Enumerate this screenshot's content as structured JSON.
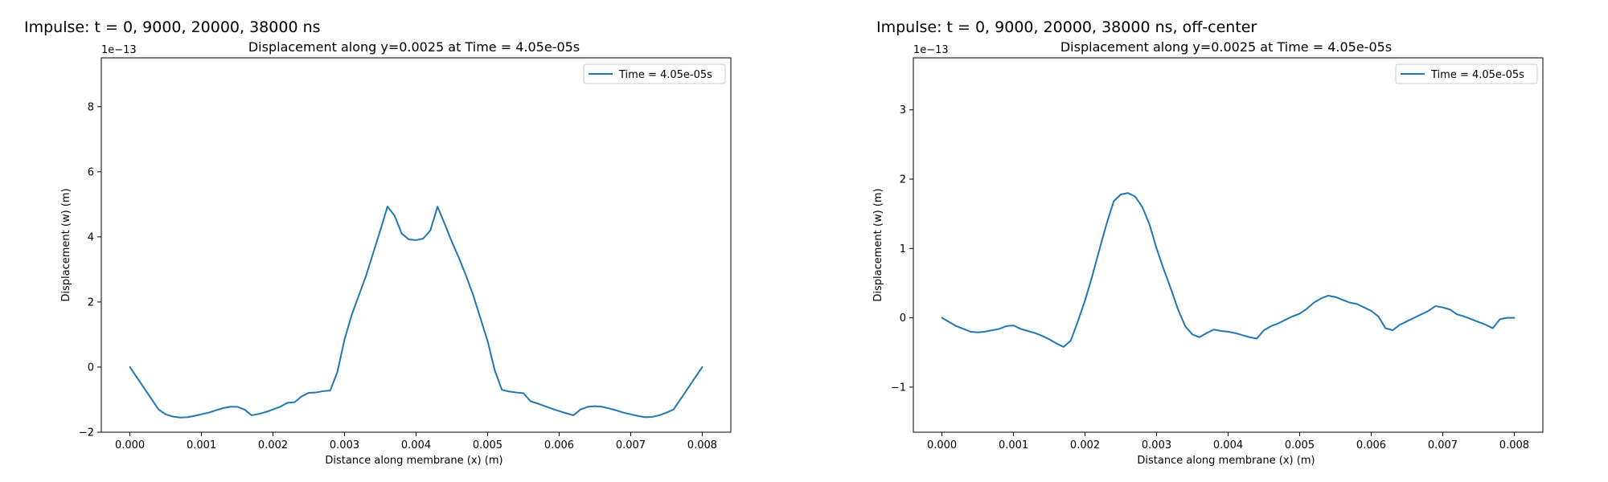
{
  "figure": {
    "colors": {
      "series": "#1f77b4",
      "axes": "#000000",
      "legend_border": "#cccccc",
      "background": "#ffffff"
    }
  },
  "chart_data": [
    {
      "type": "line",
      "suptitle": "Impulse: t = 0, 9000, 20000, 38000 ns",
      "title": "Displacement along y=0.0025 at Time = 4.05e-05s",
      "xlabel": "Distance along membrane (x) (m)",
      "ylabel": "Displacement (w) (m)",
      "y_offset_text": "1e−13",
      "xlim": [
        -0.0004,
        0.0084
      ],
      "ylim": [
        -2.0,
        9.5
      ],
      "xticks": [
        0.0,
        0.001,
        0.002,
        0.003,
        0.004,
        0.005,
        0.006,
        0.007,
        0.008
      ],
      "xtick_labels": [
        "0.000",
        "0.001",
        "0.002",
        "0.003",
        "0.004",
        "0.005",
        "0.006",
        "0.007",
        "0.008"
      ],
      "yticks": [
        -2,
        0,
        2,
        4,
        6,
        8
      ],
      "ytick_labels": [
        "−2",
        "0",
        "2",
        "4",
        "6",
        "8"
      ],
      "grid": false,
      "legend_position": "upper right",
      "series": [
        {
          "name": "Time = 4.05e-05s",
          "x": [
            0.0,
            0.0002,
            0.0004,
            0.0005,
            0.0006,
            0.0007,
            0.0008,
            0.0009,
            0.001,
            0.0011,
            0.0012,
            0.0013,
            0.0014,
            0.0015,
            0.0016,
            0.0017,
            0.0018,
            0.0019,
            0.002,
            0.0021,
            0.0022,
            0.0023,
            0.0024,
            0.0025,
            0.0026,
            0.0027,
            0.0028,
            0.0029,
            0.003,
            0.0031,
            0.0032,
            0.0033,
            0.0034,
            0.0035,
            0.0036,
            0.0037,
            0.0038,
            0.0039,
            0.004,
            0.0041,
            0.0042,
            0.0043,
            0.0044,
            0.0045,
            0.0046,
            0.0047,
            0.0048,
            0.0049,
            0.005,
            0.0051,
            0.0052,
            0.0053,
            0.0054,
            0.0055,
            0.0056,
            0.0057,
            0.0058,
            0.0059,
            0.006,
            0.0061,
            0.0062,
            0.0063,
            0.0064,
            0.0065,
            0.0066,
            0.0067,
            0.0068,
            0.0069,
            0.007,
            0.0071,
            0.0072,
            0.0073,
            0.0074,
            0.0075,
            0.0076,
            0.0078,
            0.008
          ],
          "y": [
            0.0,
            -0.65,
            -1.3,
            -1.45,
            -1.52,
            -1.55,
            -1.54,
            -1.5,
            -1.45,
            -1.4,
            -1.33,
            -1.26,
            -1.22,
            -1.22,
            -1.3,
            -1.48,
            -1.44,
            -1.38,
            -1.3,
            -1.22,
            -1.1,
            -1.08,
            -0.9,
            -0.79,
            -0.78,
            -0.74,
            -0.72,
            -0.15,
            0.85,
            1.6,
            2.2,
            2.8,
            3.5,
            4.2,
            4.93,
            4.65,
            4.1,
            3.92,
            3.9,
            3.95,
            4.2,
            4.93,
            4.4,
            3.85,
            3.35,
            2.8,
            2.2,
            1.5,
            0.8,
            -0.1,
            -0.7,
            -0.75,
            -0.78,
            -0.8,
            -1.05,
            -1.12,
            -1.2,
            -1.28,
            -1.35,
            -1.42,
            -1.48,
            -1.3,
            -1.22,
            -1.2,
            -1.22,
            -1.27,
            -1.33,
            -1.4,
            -1.45,
            -1.5,
            -1.54,
            -1.53,
            -1.48,
            -1.4,
            -1.3,
            -0.65,
            0.0
          ]
        }
      ]
    },
    {
      "type": "line",
      "suptitle": "Impulse: t = 0, 9000, 20000, 38000 ns, off-center",
      "title": "Displacement along y=0.0025 at Time = 4.05e-05s",
      "xlabel": "Distance along membrane (x) (m)",
      "ylabel": "Displacement (w) (m)",
      "y_offset_text": "1e−13",
      "xlim": [
        -0.0004,
        0.0084
      ],
      "ylim": [
        -1.65,
        3.75
      ],
      "xticks": [
        0.0,
        0.001,
        0.002,
        0.003,
        0.004,
        0.005,
        0.006,
        0.007,
        0.008
      ],
      "xtick_labels": [
        "0.000",
        "0.001",
        "0.002",
        "0.003",
        "0.004",
        "0.005",
        "0.006",
        "0.007",
        "0.008"
      ],
      "yticks": [
        -1,
        0,
        1,
        2,
        3
      ],
      "ytick_labels": [
        "−1",
        "0",
        "1",
        "2",
        "3"
      ],
      "grid": false,
      "legend_position": "upper right",
      "series": [
        {
          "name": "Time = 4.05e-05s",
          "x": [
            0.0,
            0.0002,
            0.0004,
            0.0005,
            0.0006,
            0.0007,
            0.0008,
            0.0009,
            0.001,
            0.0011,
            0.0012,
            0.0013,
            0.0014,
            0.0015,
            0.0016,
            0.0017,
            0.0018,
            0.0019,
            0.002,
            0.0021,
            0.0022,
            0.0023,
            0.0024,
            0.0025,
            0.0026,
            0.0027,
            0.0028,
            0.0029,
            0.003,
            0.0031,
            0.0032,
            0.0033,
            0.0034,
            0.0035,
            0.0036,
            0.0037,
            0.0038,
            0.0039,
            0.004,
            0.0041,
            0.0042,
            0.0043,
            0.0044,
            0.0045,
            0.0046,
            0.0047,
            0.0048,
            0.0049,
            0.005,
            0.0051,
            0.0052,
            0.0053,
            0.0054,
            0.0055,
            0.0056,
            0.0057,
            0.0058,
            0.0059,
            0.006,
            0.0061,
            0.0062,
            0.0063,
            0.0064,
            0.0065,
            0.0066,
            0.0067,
            0.0068,
            0.0069,
            0.007,
            0.0071,
            0.0072,
            0.0073,
            0.0074,
            0.0075,
            0.0076,
            0.0077,
            0.0078,
            0.0079,
            0.008
          ],
          "y": [
            0.0,
            -0.12,
            -0.2,
            -0.21,
            -0.2,
            -0.18,
            -0.16,
            -0.12,
            -0.11,
            -0.16,
            -0.19,
            -0.22,
            -0.26,
            -0.31,
            -0.37,
            -0.42,
            -0.33,
            -0.05,
            0.25,
            0.6,
            0.98,
            1.35,
            1.68,
            1.78,
            1.8,
            1.75,
            1.6,
            1.35,
            1.0,
            0.7,
            0.42,
            0.12,
            -0.12,
            -0.24,
            -0.28,
            -0.22,
            -0.17,
            -0.19,
            -0.2,
            -0.22,
            -0.25,
            -0.28,
            -0.3,
            -0.18,
            -0.12,
            -0.08,
            -0.03,
            0.02,
            0.06,
            0.13,
            0.22,
            0.28,
            0.32,
            0.3,
            0.26,
            0.22,
            0.2,
            0.15,
            0.1,
            0.02,
            -0.15,
            -0.18,
            -0.1,
            -0.05,
            0.0,
            0.05,
            0.1,
            0.17,
            0.15,
            0.12,
            0.05,
            0.02,
            -0.02,
            -0.06,
            -0.1,
            -0.15,
            -0.02,
            0.0,
            0.0
          ]
        }
      ]
    }
  ]
}
